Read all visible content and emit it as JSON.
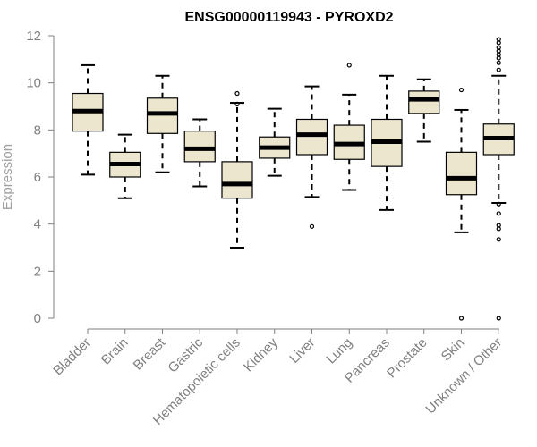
{
  "chart_data": {
    "type": "boxplot",
    "title": "ENSG00000119943 - PYROXD2",
    "xlabel": "",
    "ylabel": "Expression",
    "ylim": [
      0,
      12
    ],
    "yticks": [
      0,
      2,
      4,
      6,
      8,
      10,
      12
    ],
    "grid": false,
    "box_fill": "#ede6cf",
    "categories": [
      "Bladder",
      "Brain",
      "Breast",
      "Gastric",
      "Hematopoietic cells",
      "Kidney",
      "Liver",
      "Lung",
      "Pancreas",
      "Prostate",
      "Skin",
      "Unknown / Other"
    ],
    "boxes": [
      {
        "whisker_low": 6.1,
        "q1": 7.95,
        "median": 8.8,
        "q3": 9.55,
        "whisker_high": 10.75,
        "outliers": []
      },
      {
        "whisker_low": 5.1,
        "q1": 6.0,
        "median": 6.55,
        "q3": 7.05,
        "whisker_high": 7.8,
        "outliers": []
      },
      {
        "whisker_low": 6.2,
        "q1": 7.85,
        "median": 8.7,
        "q3": 9.35,
        "whisker_high": 10.3,
        "outliers": []
      },
      {
        "whisker_low": 5.6,
        "q1": 6.65,
        "median": 7.2,
        "q3": 7.95,
        "whisker_high": 8.45,
        "outliers": []
      },
      {
        "whisker_low": 3.0,
        "q1": 5.1,
        "median": 5.7,
        "q3": 6.65,
        "whisker_high": 9.15,
        "outliers": [
          9.55,
          9.1
        ]
      },
      {
        "whisker_low": 6.05,
        "q1": 6.8,
        "median": 7.25,
        "q3": 7.7,
        "whisker_high": 8.9,
        "outliers": []
      },
      {
        "whisker_low": 5.15,
        "q1": 6.95,
        "median": 7.8,
        "q3": 8.45,
        "whisker_high": 9.85,
        "outliers": [
          3.9
        ]
      },
      {
        "whisker_low": 5.45,
        "q1": 6.75,
        "median": 7.4,
        "q3": 8.2,
        "whisker_high": 9.5,
        "outliers": [
          10.75
        ]
      },
      {
        "whisker_low": 4.6,
        "q1": 6.45,
        "median": 7.5,
        "q3": 8.45,
        "whisker_high": 10.3,
        "outliers": []
      },
      {
        "whisker_low": 7.5,
        "q1": 8.7,
        "median": 9.3,
        "q3": 9.65,
        "whisker_high": 10.15,
        "outliers": []
      },
      {
        "whisker_low": 3.65,
        "q1": 5.25,
        "median": 5.95,
        "q3": 7.05,
        "whisker_high": 8.85,
        "outliers": [
          9.7,
          0.0
        ]
      },
      {
        "whisker_low": 4.9,
        "q1": 6.95,
        "median": 7.65,
        "q3": 8.25,
        "whisker_high": 10.3,
        "outliers": [
          11.85,
          11.7,
          11.5,
          11.35,
          11.2,
          11.05,
          10.85,
          10.55,
          4.85,
          4.45,
          3.95,
          3.8,
          3.35,
          0.0
        ]
      }
    ]
  }
}
